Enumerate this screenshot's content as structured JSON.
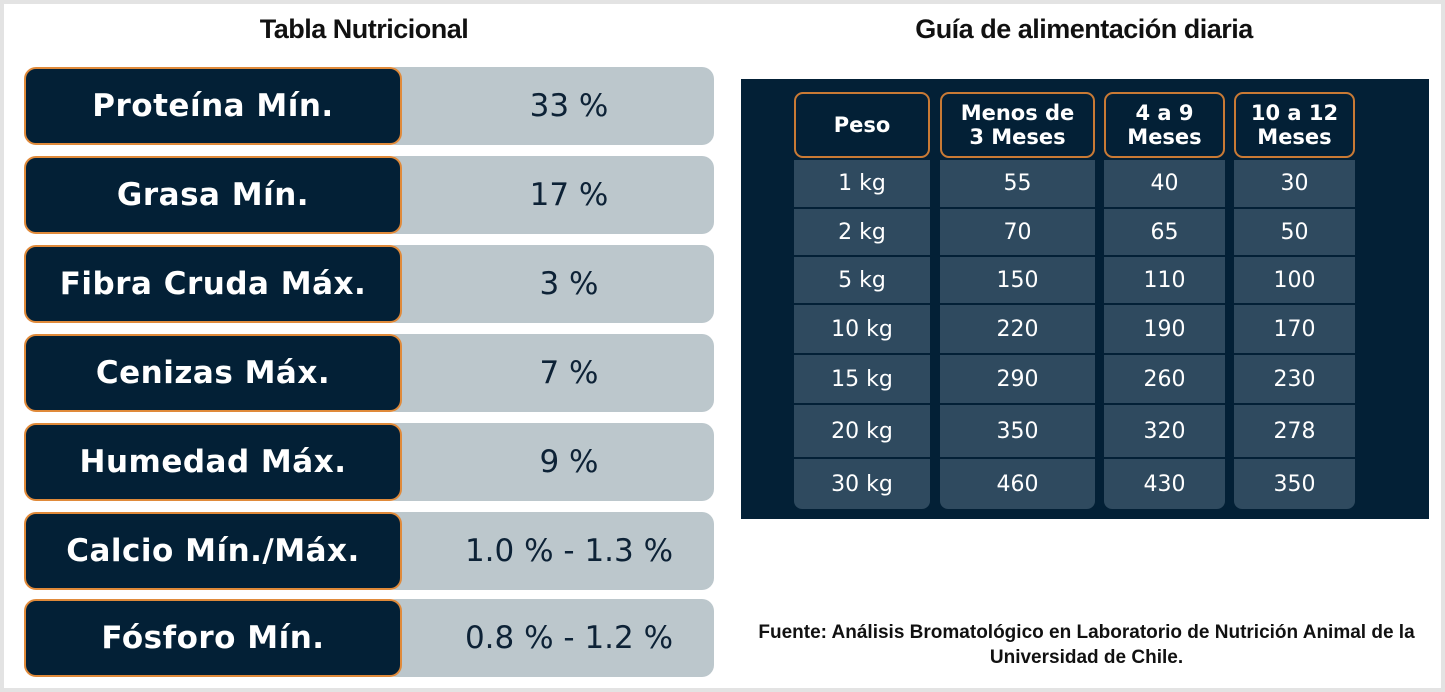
{
  "nutrition": {
    "title": "Tabla Nutricional",
    "rows": [
      {
        "label": "Proteína Mín.",
        "value": "33 %"
      },
      {
        "label": "Grasa Mín.",
        "value": "17 %"
      },
      {
        "label": "Fibra Cruda Máx.",
        "value": "3 %"
      },
      {
        "label": "Cenizas Máx.",
        "value": "7 %"
      },
      {
        "label": "Humedad Máx.",
        "value": "9 %"
      },
      {
        "label": "Calcio Mín./Máx.",
        "value": "1.0 % - 1.3 %"
      },
      {
        "label": "Fósforo Mín.",
        "value": "0.8 % - 1.2 %"
      }
    ]
  },
  "feeding": {
    "title": "Guía de alimentación diaria",
    "headers": [
      "Peso",
      "Menos de 3 Meses",
      "4 a 9 Meses",
      "10 a 12 Meses"
    ],
    "rows": [
      [
        "1 kg",
        "55",
        "40",
        "30"
      ],
      [
        "2 kg",
        "70",
        "65",
        "50"
      ],
      [
        "5 kg",
        "150",
        "110",
        "100"
      ],
      [
        "10 kg",
        "220",
        "190",
        "170"
      ],
      [
        "15 kg",
        "290",
        "260",
        "230"
      ],
      [
        "20 kg",
        "350",
        "320",
        "278"
      ],
      [
        "30 kg",
        "460",
        "430",
        "350"
      ]
    ]
  },
  "footer": "Fuente: Análisis Bromatológico en Laboratorio de Nutrición Animal de la Universidad de Chile."
}
